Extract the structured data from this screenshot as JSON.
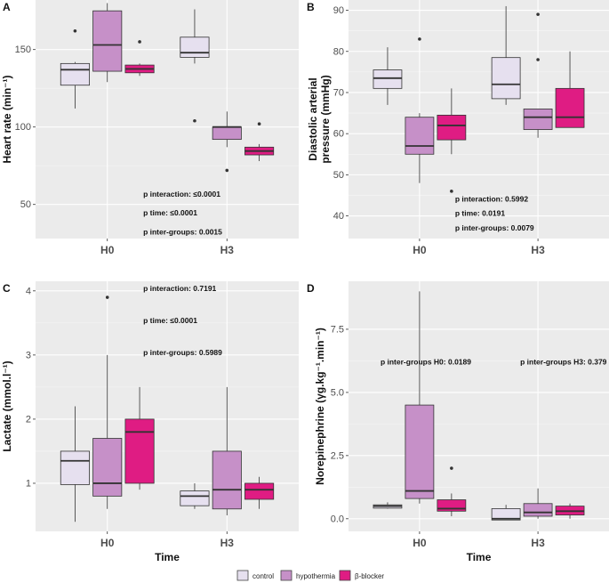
{
  "legend": {
    "items": [
      {
        "label": "control",
        "color": "#e6e0ef"
      },
      {
        "label": "hypothermia",
        "color": "#c690c8"
      },
      {
        "label": "β-blocker",
        "color": "#df1c83"
      }
    ]
  },
  "chart_data": [
    {
      "id": "A",
      "panel_label": "A",
      "type": "boxplot",
      "ylabel": "Heart rate (min⁻¹)",
      "xlabel": "",
      "categories": [
        "H0",
        "H3"
      ],
      "ylim": [
        28,
        182
      ],
      "yticks": [
        50,
        100,
        150
      ],
      "ytick_labels": [
        "50",
        "100",
        "150"
      ],
      "boxes": [
        {
          "category": "H0",
          "group": "control",
          "min": 112,
          "q1": 127,
          "median": 137,
          "q3": 141,
          "max": 142,
          "outliers": [
            162
          ]
        },
        {
          "category": "H0",
          "group": "hypothermia",
          "min": 129,
          "q1": 136,
          "median": 153,
          "q3": 175,
          "max": 180,
          "outliers": []
        },
        {
          "category": "H0",
          "group": "β-blocker",
          "min": 133,
          "q1": 135,
          "median": 137.5,
          "q3": 140,
          "max": 141,
          "outliers": [
            155
          ]
        },
        {
          "category": "H3",
          "group": "control",
          "min": 141,
          "q1": 145,
          "median": 148,
          "q3": 158,
          "max": 176,
          "outliers": [
            104
          ]
        },
        {
          "category": "H3",
          "group": "hypothermia",
          "min": 87,
          "q1": 92,
          "median": 100,
          "q3": 100,
          "max": 110,
          "outliers": [
            72
          ]
        },
        {
          "category": "H3",
          "group": "β-blocker",
          "min": 78,
          "q1": 82,
          "median": 84.5,
          "q3": 87,
          "max": 89,
          "outliers": [
            102
          ]
        }
      ],
      "annotations": [
        {
          "text": "p interaction: ≤0.0001",
          "x": 1.3,
          "y": 55
        },
        {
          "text": "p time: ≤0.0001",
          "x": 1.3,
          "y": 43
        },
        {
          "text": "p inter-groups: 0.0015",
          "x": 1.3,
          "y": 30.5
        }
      ]
    },
    {
      "id": "B",
      "panel_label": "B",
      "type": "boxplot",
      "ylabel": "Diastolic arterial pressure (mmHg)",
      "xlabel": "",
      "categories": [
        "H0",
        "H3"
      ],
      "ylim": [
        34.5,
        92.5
      ],
      "yticks": [
        40,
        50,
        60,
        70,
        80,
        90
      ],
      "ytick_labels": [
        "40",
        "50",
        "60",
        "70",
        "80",
        "90"
      ],
      "boxes": [
        {
          "category": "H0",
          "group": "control",
          "min": 67,
          "q1": 71,
          "median": 73.5,
          "q3": 75.5,
          "max": 81,
          "outliers": []
        },
        {
          "category": "H0",
          "group": "hypothermia",
          "min": 48,
          "q1": 55,
          "median": 57,
          "q3": 64,
          "max": 65,
          "outliers": [
            83
          ]
        },
        {
          "category": "H0",
          "group": "β-blocker",
          "min": 55,
          "q1": 58.5,
          "median": 62,
          "q3": 64.5,
          "max": 71,
          "outliers": [
            46
          ]
        },
        {
          "category": "H3",
          "group": "control",
          "min": 67,
          "q1": 68.5,
          "median": 72,
          "q3": 78.5,
          "max": 91,
          "outliers": []
        },
        {
          "category": "H3",
          "group": "hypothermia",
          "min": 59,
          "q1": 61,
          "median": 64,
          "q3": 66,
          "max": 66,
          "outliers": [
            78,
            89
          ]
        },
        {
          "category": "H3",
          "group": "β-blocker",
          "min": 61.5,
          "q1": 61.5,
          "median": 64,
          "q3": 71,
          "max": 80,
          "outliers": []
        }
      ],
      "annotations": [
        {
          "text": "p interaction: 0.5992",
          "x": 1.3,
          "y": 43.5
        },
        {
          "text": "p time: 0.0191",
          "x": 1.3,
          "y": 40
        },
        {
          "text": "p inter-groups: 0.0079",
          "x": 1.3,
          "y": 36.5
        }
      ]
    },
    {
      "id": "C",
      "panel_label": "C",
      "type": "boxplot",
      "ylabel": "Lactate (mmol.l⁻¹)",
      "xlabel": "Time",
      "categories": [
        "H0",
        "H3"
      ],
      "ylim": [
        0.25,
        4.15
      ],
      "yticks": [
        1,
        2,
        3,
        4
      ],
      "ytick_labels": [
        "1",
        "2",
        "3",
        "4"
      ],
      "boxes": [
        {
          "category": "H0",
          "group": "control",
          "min": 0.4,
          "q1": 0.98,
          "median": 1.35,
          "q3": 1.5,
          "max": 2.2,
          "outliers": []
        },
        {
          "category": "H0",
          "group": "hypothermia",
          "min": 0.6,
          "q1": 0.8,
          "median": 1.0,
          "q3": 1.7,
          "max": 3.0,
          "outliers": [
            3.9
          ]
        },
        {
          "category": "H0",
          "group": "β-blocker",
          "min": 0.9,
          "q1": 1.0,
          "median": 1.8,
          "q3": 2.0,
          "max": 2.5,
          "outliers": []
        },
        {
          "category": "H3",
          "group": "control",
          "min": 0.6,
          "q1": 0.65,
          "median": 0.8,
          "q3": 0.88,
          "max": 1.0,
          "outliers": []
        },
        {
          "category": "H3",
          "group": "hypothermia",
          "min": 0.5,
          "q1": 0.6,
          "median": 0.9,
          "q3": 1.5,
          "max": 2.5,
          "outliers": []
        },
        {
          "category": "H3",
          "group": "β-blocker",
          "min": 0.6,
          "q1": 0.75,
          "median": 0.9,
          "q3": 1.0,
          "max": 1.1,
          "outliers": []
        }
      ],
      "annotations": [
        {
          "text": "p interaction: 0.7191",
          "x": 1.3,
          "y": 4.0
        },
        {
          "text": "p time: ≤0.0001",
          "x": 1.3,
          "y": 3.5
        },
        {
          "text": "p inter-groups: 0.5989",
          "x": 1.3,
          "y": 3.0
        }
      ]
    },
    {
      "id": "D",
      "panel_label": "D",
      "type": "boxplot",
      "ylabel": "Norepinephrine (γg.kg⁻¹.min⁻¹)",
      "xlabel": "Time",
      "categories": [
        "H0",
        "H3"
      ],
      "ylim": [
        -0.5,
        9.4
      ],
      "yticks": [
        0,
        2.5,
        5,
        7.5
      ],
      "ytick_labels": [
        "0.0",
        "2.5",
        "5.0",
        "7.5"
      ],
      "boxes": [
        {
          "category": "H0",
          "group": "control",
          "min": 0.4,
          "q1": 0.42,
          "median": 0.5,
          "q3": 0.55,
          "max": 0.65,
          "outliers": []
        },
        {
          "category": "H0",
          "group": "hypothermia",
          "min": 0.6,
          "q1": 0.8,
          "median": 1.1,
          "q3": 4.5,
          "max": 9.0,
          "outliers": []
        },
        {
          "category": "H0",
          "group": "β-blocker",
          "min": 0.1,
          "q1": 0.3,
          "median": 0.4,
          "q3": 0.75,
          "max": 1.0,
          "outliers": [
            2.0
          ]
        },
        {
          "category": "H3",
          "group": "control",
          "min": -0.05,
          "q1": -0.05,
          "median": 0.0,
          "q3": 0.4,
          "max": 0.55,
          "outliers": []
        },
        {
          "category": "H3",
          "group": "hypothermia",
          "min": 0.0,
          "q1": 0.1,
          "median": 0.25,
          "q3": 0.6,
          "max": 1.2,
          "outliers": []
        },
        {
          "category": "H3",
          "group": "β-blocker",
          "min": 0.0,
          "q1": 0.15,
          "median": 0.3,
          "q3": 0.5,
          "max": 0.6,
          "outliers": []
        }
      ],
      "annotations": [
        {
          "text": "p inter-groups H0: 0.0189",
          "x": 0.67,
          "y": 6.1
        },
        {
          "text": "p inter-groups H3: 0.379",
          "x": 1.85,
          "y": 6.1
        }
      ]
    }
  ]
}
